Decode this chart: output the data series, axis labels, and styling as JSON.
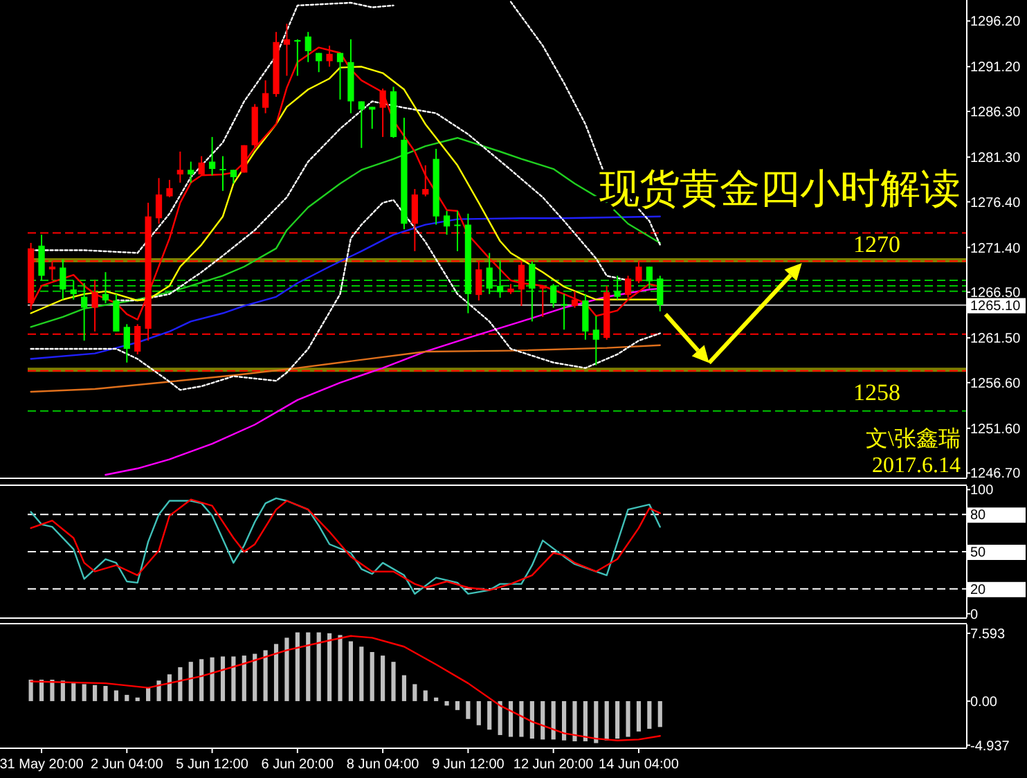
{
  "chart_data": [
    {
      "type": "candlestick",
      "title": "现货黄金四小时解读",
      "annotations": [
        "文\\张鑫瑞",
        "2017.6.14"
      ],
      "categories": [
        null,
        null,
        null,
        null,
        null,
        null,
        null,
        null,
        null,
        null,
        null,
        null,
        null,
        null,
        null,
        null,
        null,
        null,
        null,
        null,
        null,
        null,
        null,
        null,
        null,
        null,
        null,
        null,
        null,
        null,
        null,
        null,
        null,
        null,
        null,
        null,
        null,
        null,
        null,
        null,
        null,
        null,
        null,
        null,
        null,
        null,
        null,
        null,
        null,
        null,
        null,
        null,
        null,
        null,
        null,
        null,
        null,
        null,
        null,
        null,
        null,
        null,
        null,
        null,
        null,
        null,
        null,
        null,
        null,
        null,
        null,
        null,
        null,
        null,
        null,
        null,
        null,
        null,
        null,
        null,
        null,
        null,
        null,
        null,
        null,
        null,
        null,
        null
      ],
      "ylim": [
        1246.2,
        1298.5
      ],
      "yticks": [
        {
          "value": 1296.2,
          "label": "1296.20"
        },
        {
          "value": 1291.2,
          "label": "1291.20"
        },
        {
          "value": 1286.3,
          "label": "1286.30"
        },
        {
          "value": 1281.3,
          "label": "1281.30"
        },
        {
          "value": 1276.4,
          "label": "1276.40"
        },
        {
          "value": 1271.4,
          "label": "1271.40"
        },
        {
          "value": 1266.5,
          "label": "1266.50"
        },
        {
          "value": 1265.1,
          "label": "1265.10"
        },
        {
          "value": 1261.5,
          "label": "1261.50"
        },
        {
          "value": 1256.6,
          "label": "1256.60"
        },
        {
          "value": 1251.6,
          "label": "1251.60"
        },
        {
          "value": 1246.7,
          "label": "1246.70"
        }
      ],
      "tick_labels": "y",
      "ohlc": [
        [
          1265.3,
          1271.9,
          1264.6,
          1271.3
        ],
        [
          1271.6,
          1272.8,
          1267.8,
          1268.3
        ],
        [
          1269.0,
          1269.9,
          1267.8,
          1269.3
        ],
        [
          1269.2,
          1270.1,
          1265.7,
          1266.8
        ],
        [
          1266.8,
          1267.8,
          1265.7,
          1266.3
        ],
        [
          1266.0,
          1267.5,
          1261.2,
          1264.8
        ],
        [
          1264.8,
          1267.8,
          1262.2,
          1266.5
        ],
        [
          1266.3,
          1268.7,
          1265.3,
          1265.6
        ],
        [
          1265.6,
          1266.3,
          1262.2,
          1262.2
        ],
        [
          1262.7,
          1263.0,
          1258.8,
          1260.3
        ],
        [
          1260.0,
          1263.0,
          1259.7,
          1262.8
        ],
        [
          1262.5,
          1276.3,
          1261.2,
          1274.8
        ],
        [
          1274.6,
          1279.0,
          1274.0,
          1277.2
        ],
        [
          1277.0,
          1278.8,
          1276.9,
          1277.9
        ],
        [
          1279.4,
          1281.9,
          1278.5,
          1279.9
        ],
        [
          1279.9,
          1280.8,
          1278.5,
          1279.4
        ],
        [
          1279.4,
          1281.4,
          1279.3,
          1280.7
        ],
        [
          1280.8,
          1283.5,
          1279.3,
          1280.0
        ],
        [
          1280.0,
          1281.4,
          1277.6,
          1279.9
        ],
        [
          1279.9,
          1279.9,
          1278.4,
          1279.1
        ],
        [
          1279.6,
          1282.6,
          1279.6,
          1282.6
        ],
        [
          1282.6,
          1287.1,
          1282.3,
          1286.8
        ],
        [
          1286.7,
          1289.7,
          1286.1,
          1288.3
        ],
        [
          1288.2,
          1295.0,
          1287.9,
          1293.9
        ],
        [
          1293.6,
          1295.9,
          1290.2,
          1294.2
        ],
        [
          1294.1,
          1294.2,
          1290.2,
          1294.0
        ],
        [
          1294.5,
          1295.0,
          1291.7,
          1292.9
        ],
        [
          1292.7,
          1292.7,
          1290.6,
          1291.8
        ],
        [
          1291.8,
          1293.5,
          1291.2,
          1292.6
        ],
        [
          1292.7,
          1292.7,
          1287.6,
          1291.7
        ],
        [
          1291.7,
          1294.2,
          1286.1,
          1287.4
        ],
        [
          1287.4,
          1287.4,
          1282.3,
          1286.5
        ],
        [
          1286.8,
          1286.8,
          1284.4,
          1286.5
        ],
        [
          1286.7,
          1288.8,
          1283.5,
          1288.6
        ],
        [
          1288.5,
          1289.0,
          1283.4,
          1283.5
        ],
        [
          1283.2,
          1285.6,
          1273.4,
          1274.0
        ],
        [
          1274.0,
          1277.8,
          1271.0,
          1277.2
        ],
        [
          1277.2,
          1280.4,
          1277.0,
          1277.8
        ],
        [
          1281.1,
          1282.2,
          1273.9,
          1274.8
        ],
        [
          1274.9,
          1275.4,
          1272.8,
          1273.7
        ],
        [
          1273.9,
          1275.4,
          1271.0,
          1273.8
        ],
        [
          1273.9,
          1275.1,
          1264.2,
          1266.3
        ],
        [
          1266.2,
          1269.9,
          1265.6,
          1269.0
        ],
        [
          1269.2,
          1270.8,
          1266.3,
          1266.9
        ],
        [
          1267.2,
          1269.9,
          1265.9,
          1266.5
        ],
        [
          1266.5,
          1267.4,
          1266.3,
          1266.9
        ],
        [
          1266.8,
          1269.9,
          1265.0,
          1269.5
        ],
        [
          1269.6,
          1269.9,
          1263.3,
          1266.9
        ],
        [
          1266.9,
          1267.2,
          1263.8,
          1267.2
        ],
        [
          1267.2,
          1267.4,
          1264.8,
          1265.3
        ],
        [
          1265.2,
          1266.3,
          1262.4,
          1265.1
        ],
        [
          1265.0,
          1266.6,
          1264.8,
          1265.7
        ],
        [
          1265.6,
          1266.3,
          1261.3,
          1262.2
        ],
        [
          1262.4,
          1263.9,
          1258.5,
          1261.3
        ],
        [
          1261.5,
          1267.2,
          1261.3,
          1266.5
        ],
        [
          1266.6,
          1268.3,
          1265.7,
          1266.0
        ],
        [
          1266.2,
          1268.3,
          1265.9,
          1268.0
        ],
        [
          1267.7,
          1269.9,
          1267.5,
          1269.3
        ],
        [
          1269.3,
          1269.3,
          1266.9,
          1267.7
        ],
        [
          1268.0,
          1268.3,
          1264.4,
          1265.1
        ],
        null,
        null,
        null,
        null,
        null,
        null,
        null,
        null,
        null,
        null,
        null,
        null,
        null,
        null,
        null,
        null,
        null,
        null,
        null,
        null,
        null,
        null,
        null,
        null,
        null,
        null,
        null,
        null
      ],
      "colors": [
        "#ff0000",
        "#00ff00",
        "#ff0000",
        "#00ff00",
        "#00ff00",
        "#00ff00",
        "#ff0000",
        "#00ff00",
        "#00ff00",
        "#00ff00",
        "#ff0000",
        "#ff0000",
        "#ff0000",
        "#ff0000",
        "#ff0000",
        "#00ff00",
        "#ff0000",
        "#00ff00",
        "#00ff00",
        "#00ff00",
        "#ff0000",
        "#ff0000",
        "#ff0000",
        "#ff0000",
        "#ff0000",
        "#00ff00",
        "#00ff00",
        "#00ff00",
        "#ff0000",
        "#00ff00",
        "#00ff00",
        "#00ff00",
        "#00ff00",
        "#ff0000",
        "#00ff00",
        "#00ff00",
        "#ff0000",
        "#ff0000",
        "#00ff00",
        "#00ff00",
        "#00ff00",
        "#00ff00",
        "#ff0000",
        "#00ff00",
        "#00ff00",
        "#ff0000",
        "#ff0000",
        "#00ff00",
        "#ff0000",
        "#00ff00",
        "#00ff00",
        "#ff0000",
        "#00ff00",
        "#00ff00",
        "#ff0000",
        "#00ff00",
        "#ff0000",
        "#ff0000",
        "#00ff00",
        "#00ff00",
        null,
        null,
        null,
        null,
        null,
        null,
        null,
        null,
        null,
        null,
        null,
        null,
        null,
        null,
        null,
        null,
        null,
        null,
        null,
        null,
        null,
        null,
        null,
        null,
        null,
        null,
        null,
        null
      ],
      "series": [
        {
          "type": "line",
          "color": "#ff00ff",
          "values": [
            null,
            null,
            null,
            null,
            null,
            null,
            null,
            1246.5,
            null,
            null,
            1247.2,
            null,
            null,
            1248.2,
            null,
            null,
            null,
            1249.9,
            null,
            null,
            null,
            1252.0,
            null,
            null,
            null,
            1254.7,
            null,
            null,
            null,
            1256.6,
            null,
            null,
            null,
            1258.2,
            null,
            null,
            null,
            1260.0,
            null,
            null,
            null,
            1261.5,
            null,
            null,
            null,
            null,
            1263.3,
            null,
            null,
            null,
            1264.8,
            null,
            null,
            null,
            1266.0,
            null,
            null,
            null,
            1266.8,
            1266.9,
            null,
            null,
            null,
            null,
            null,
            null,
            null,
            null,
            null,
            null,
            null,
            null,
            null,
            null,
            null,
            null,
            null,
            null,
            null,
            null,
            null,
            null,
            null,
            null,
            null,
            null,
            null,
            null
          ]
        },
        {
          "type": "line",
          "color": "#e0701c",
          "values": [
            1255.6,
            null,
            null,
            null,
            null,
            null,
            1255.9,
            null,
            null,
            null,
            null,
            null,
            null,
            1256.7,
            null,
            null,
            null,
            null,
            null,
            1257.4,
            null,
            null,
            null,
            null,
            null,
            1258.2,
            null,
            null,
            null,
            1258.8,
            null,
            null,
            null,
            null,
            null,
            null,
            null,
            1260.0,
            null,
            null,
            null,
            null,
            null,
            null,
            null,
            1260.1,
            null,
            null,
            null,
            null,
            null,
            null,
            null,
            null,
            1260.4,
            null,
            null,
            null,
            null,
            1260.7,
            null,
            null,
            null,
            null,
            null,
            null,
            null,
            null,
            null,
            null,
            null,
            null,
            null,
            null,
            null,
            null,
            null,
            null,
            null,
            null,
            null,
            null,
            null,
            null,
            null,
            null,
            null,
            null
          ]
        },
        {
          "type": "line",
          "color": "#2020ff",
          "values": [
            1259.2,
            null,
            null,
            null,
            null,
            null,
            1259.8,
            null,
            1260.4,
            null,
            1261.0,
            null,
            null,
            1262.2,
            null,
            1263.3,
            null,
            null,
            1264.2,
            null,
            1265.0,
            null,
            null,
            1266.0,
            null,
            1267.5,
            null,
            null,
            1269.3,
            null,
            null,
            1271.0,
            null,
            null,
            1272.8,
            null,
            null,
            1273.9,
            null,
            null,
            1274.5,
            null,
            null,
            null,
            null,
            null,
            1274.6,
            null,
            null,
            null,
            1274.6,
            null,
            null,
            null,
            null,
            null,
            null,
            null,
            null,
            1274.8,
            null,
            null,
            null,
            null,
            null,
            null,
            null,
            null,
            null,
            null,
            null,
            null,
            null,
            null,
            null,
            null,
            null,
            null,
            null,
            null,
            null,
            null,
            null,
            null,
            null,
            null,
            null,
            null
          ]
        },
        {
          "type": "line",
          "color": "#20d020",
          "values": [
            1262.7,
            null,
            null,
            1263.8,
            null,
            1264.7,
            null,
            null,
            1265.3,
            null,
            1265.7,
            null,
            null,
            1266.5,
            null,
            1267.2,
            null,
            null,
            1268.3,
            null,
            1269.3,
            null,
            null,
            1271.3,
            1273.3,
            null,
            1275.8,
            null,
            null,
            1278.4,
            null,
            1279.9,
            null,
            null,
            1281.1,
            null,
            null,
            1282.5,
            null,
            null,
            1283.4,
            null,
            null,
            null,
            1281.9,
            null,
            1281.1,
            null,
            null,
            1280.0,
            null,
            1278.4,
            null,
            null,
            1276.3,
            null,
            1274.0,
            null,
            null,
            1271.9,
            null,
            null,
            null,
            null,
            null,
            null,
            null,
            null,
            null,
            null,
            null,
            null,
            null,
            null,
            null,
            null,
            null,
            null,
            null,
            null,
            null,
            null,
            null,
            null,
            null,
            null,
            null,
            null
          ]
        },
        {
          "type": "line",
          "color": "#ffffff",
          "line_style": "dotted",
          "values": [
            1271.1,
            null,
            null,
            null,
            null,
            1271.1,
            null,
            null,
            null,
            null,
            1270.8,
            null,
            null,
            1275.1,
            null,
            1279.1,
            null,
            null,
            1282.9,
            null,
            1287.4,
            null,
            null,
            1292.4,
            null,
            1297.9,
            null,
            null,
            null,
            null,
            1298.2,
            null,
            1297.7,
            null,
            1297.9,
            null,
            null,
            null,
            null,
            null,
            null,
            null,
            null,
            null,
            null,
            null,
            null,
            null,
            null,
            null,
            null,
            null,
            null,
            null,
            null,
            null,
            null,
            null,
            null,
            null,
            null,
            null,
            null,
            null,
            null,
            null,
            null,
            null,
            null,
            null,
            null,
            null,
            null,
            null,
            null,
            null,
            null,
            null,
            null,
            null,
            null,
            null,
            null,
            null,
            null,
            null,
            null,
            null
          ]
        },
        {
          "type": "line",
          "color": "#ffffff",
          "line_style": "dotted",
          "values": [
            null,
            null,
            null,
            null,
            null,
            null,
            null,
            null,
            null,
            null,
            null,
            null,
            null,
            null,
            null,
            null,
            null,
            null,
            null,
            null,
            null,
            null,
            null,
            null,
            null,
            null,
            null,
            null,
            null,
            null,
            null,
            null,
            null,
            null,
            null,
            null,
            null,
            null,
            null,
            null,
            null,
            null,
            null,
            null,
            null,
            1298.3,
            null,
            null,
            1293.5,
            null,
            1289.4,
            null,
            1284.9,
            null,
            1278.8,
            null,
            1276.9,
            null,
            1274.3,
            1271.7,
            null,
            null,
            null,
            null,
            null,
            null,
            null,
            null,
            null,
            null,
            null,
            null,
            null,
            null,
            null,
            null,
            null,
            null,
            null,
            null,
            null,
            null,
            null,
            null,
            null,
            null,
            null,
            null
          ]
        },
        {
          "type": "line",
          "color": "#ffffff",
          "line_style": "dotted",
          "values": [
            null,
            null,
            null,
            null,
            null,
            null,
            null,
            null,
            1265.6,
            null,
            1265.6,
            null,
            null,
            1266.3,
            null,
            null,
            1268.7,
            null,
            1270.5,
            null,
            null,
            1273.3,
            null,
            null,
            1276.9,
            null,
            1280.8,
            null,
            null,
            1284.4,
            null,
            null,
            1287.4,
            null,
            null,
            1286.7,
            null,
            null,
            1286.1,
            null,
            null,
            1283.8,
            null,
            null,
            null,
            1279.9,
            null,
            null,
            1276.9,
            null,
            1274.3,
            null,
            null,
            1270.2,
            1268.3,
            null,
            1267.8,
            null,
            null,
            null,
            null,
            null,
            null,
            null,
            null,
            null,
            null,
            null,
            null,
            null,
            null,
            null,
            null,
            null,
            null,
            null,
            null,
            null,
            null,
            null,
            null,
            null,
            null,
            null,
            null,
            null,
            null,
            null
          ]
        },
        {
          "type": "line",
          "color": "#ffffff",
          "line_style": "dotted",
          "values": [
            1260.3,
            null,
            null,
            null,
            null,
            null,
            null,
            null,
            1260.3,
            null,
            1259.2,
            null,
            null,
            1256.7,
            1255.8,
            null,
            1256.2,
            null,
            null,
            1257.3,
            null,
            null,
            null,
            1256.8,
            1257.7,
            null,
            1260.3,
            null,
            null,
            1266.3,
            1272.4,
            1273.9,
            null,
            1276.3,
            1276.6,
            null,
            null,
            1272.0,
            null,
            null,
            1266.3,
            null,
            null,
            1263.3,
            null,
            1260.3,
            null,
            null,
            null,
            1258.8,
            null,
            null,
            1258.2,
            null,
            null,
            1259.7,
            null,
            1261.2,
            null,
            1262.0,
            null,
            null,
            null,
            null,
            null,
            null,
            null,
            null,
            null,
            null,
            null,
            null,
            null,
            null,
            null,
            null,
            null,
            null,
            null,
            null,
            null,
            null,
            null,
            null,
            null,
            null,
            null,
            null
          ]
        },
        {
          "type": "line",
          "color": "#ffff00",
          "values": [
            1264.2,
            null,
            null,
            1265.7,
            null,
            1266.3,
            null,
            1266.6,
            1266.3,
            null,
            1265.6,
            1265.7,
            null,
            1267.2,
            1269.3,
            null,
            1271.7,
            null,
            1274.8,
            1278.4,
            null,
            1281.9,
            null,
            1284.9,
            1286.8,
            null,
            1288.7,
            null,
            1289.9,
            1291.1,
            null,
            1291.2,
            null,
            1290.5,
            null,
            1288.7,
            null,
            1284.9,
            null,
            null,
            1280.4,
            null,
            1276.3,
            null,
            1272.1,
            1270.8,
            null,
            null,
            1268.7,
            null,
            1267.1,
            null,
            null,
            1265.7,
            null,
            1265.7,
            null,
            null,
            null,
            1265.7,
            null,
            null,
            null,
            null,
            null,
            null,
            null,
            null,
            null,
            null,
            null,
            null,
            null,
            null,
            null,
            null,
            null,
            null,
            null,
            null,
            null,
            null,
            null,
            null,
            null,
            null,
            null,
            null
          ]
        },
        {
          "type": "line",
          "color": "#ff0000",
          "values": [
            1265.0,
            1267.2,
            null,
            null,
            1268.4,
            1267.2,
            1266.3,
            null,
            1265.3,
            1264.1,
            1263.5,
            1266.3,
            null,
            1272.4,
            1276.3,
            1278.5,
            1279.3,
            null,
            1279.4,
            1279.6,
            1280.7,
            1282.3,
            null,
            1284.9,
            1288.9,
            1291.7,
            null,
            1293.3,
            null,
            1292.7,
            1290.9,
            1289.7,
            null,
            1288.4,
            1285.3,
            null,
            1281.9,
            1279.3,
            null,
            1275.5,
            1275.4,
            1272.8,
            null,
            1270.2,
            null,
            1267.8,
            1267.5,
            null,
            1267.2,
            null,
            1266.3,
            null,
            1265.3,
            1263.9,
            null,
            1264.5,
            1265.7,
            null,
            1267.4,
            1267.1,
            null,
            null,
            null,
            null,
            null,
            null,
            null,
            null,
            null,
            null,
            null,
            null,
            null,
            null,
            null,
            null,
            null,
            null,
            null,
            null,
            null,
            null,
            null,
            null,
            null,
            null,
            null,
            null
          ]
        }
      ],
      "ref_lines": [
        {
          "axis": "y",
          "value": 1273.0,
          "color": "#ff0000",
          "line_style": "dashed"
        },
        {
          "axis": "y",
          "value": 1270,
          "color": "#808000",
          "line_style": "solid",
          "label": "1270"
        },
        {
          "axis": "y",
          "value": 1269.9,
          "color": "#ff0000",
          "line_style": "dashed"
        },
        {
          "axis": "y",
          "value": 1267.8,
          "color": "#00c800",
          "line_style": "dashed"
        },
        {
          "axis": "y",
          "value": 1267.2,
          "color": "#00c800",
          "line_style": "dashed"
        },
        {
          "axis": "y",
          "value": 1266.6,
          "color": "#00c800",
          "line_style": "dashed"
        },
        {
          "axis": "y",
          "value": 1265.1,
          "color": "#c0c0c0",
          "line_style": "solid"
        },
        {
          "axis": "y",
          "value": 1261.9,
          "color": "#ff0000",
          "line_style": "dashed"
        },
        {
          "axis": "y",
          "value": 1258,
          "color": "#808000",
          "line_style": "solid",
          "label": "1258"
        },
        {
          "axis": "y",
          "value": 1257.9,
          "color": "#ff0000",
          "line_style": "dashed"
        },
        {
          "axis": "y",
          "value": 1253.5,
          "color": "#00c800",
          "line_style": "dashed"
        }
      ]
    },
    {
      "type": "line",
      "categories": [
        null,
        null,
        null,
        null,
        null,
        null,
        null,
        null,
        null,
        null,
        null,
        null,
        null,
        null,
        null,
        null,
        null,
        null,
        null,
        null,
        null,
        null,
        null,
        null,
        null,
        null,
        null,
        null,
        null,
        null,
        null,
        null,
        null,
        null,
        null,
        null,
        null,
        null,
        null,
        null,
        null,
        null,
        null,
        null,
        null,
        null,
        null,
        null,
        null,
        null,
        null,
        null,
        null,
        null,
        null,
        null,
        null,
        null,
        null,
        null,
        null,
        null,
        null,
        null,
        null,
        null,
        null,
        null,
        null,
        null,
        null,
        null,
        null,
        null,
        null,
        null,
        null,
        null,
        null,
        null,
        null,
        null,
        null,
        null,
        null,
        null,
        null,
        null
      ],
      "ylim": [
        -3,
        103
      ],
      "yticks": [
        0,
        20,
        50,
        80,
        100
      ],
      "tick_labels": "y",
      "series": [
        {
          "color": "#40c0b8",
          "values": [
            82,
            72,
            70,
            null,
            52,
            28,
            null,
            44,
            41,
            26,
            25,
            58,
            80,
            91,
            null,
            91,
            89,
            79,
            null,
            41,
            55,
            74,
            89,
            93,
            91,
            null,
            84,
            71,
            56,
            null,
            49,
            36,
            32,
            41,
            null,
            31,
            16,
            null,
            29,
            null,
            25,
            16,
            null,
            19,
            24,
            null,
            24,
            39,
            59,
            null,
            46,
            40,
            null,
            null,
            31,
            null,
            84,
            null,
            88,
            70,
            null,
            null,
            null,
            null,
            null,
            null,
            null,
            null,
            null,
            null,
            null,
            null,
            null,
            null,
            null,
            null,
            null,
            null,
            null,
            null,
            null,
            null,
            null,
            null,
            null,
            null,
            null,
            null
          ]
        },
        {
          "color": "#ff0000",
          "values": [
            69,
            null,
            75,
            null,
            61,
            41,
            34,
            null,
            39,
            null,
            31,
            null,
            51,
            79,
            null,
            92,
            null,
            87,
            null,
            61,
            50,
            56,
            null,
            84,
            91,
            null,
            84,
            null,
            66,
            null,
            46,
            null,
            34,
            null,
            34,
            null,
            24,
            21,
            null,
            26,
            null,
            21,
            null,
            19,
            null,
            24,
            null,
            31,
            null,
            49,
            47,
            41,
            null,
            34,
            null,
            44,
            null,
            69,
            85,
            81,
            null,
            null,
            null,
            null,
            null,
            null,
            null,
            null,
            null,
            null,
            null,
            null,
            null,
            null,
            null,
            null,
            null,
            null,
            null,
            null,
            null,
            null,
            null,
            null,
            null,
            null,
            null,
            null
          ]
        }
      ],
      "ref_lines": [
        {
          "axis": "y",
          "value": 80,
          "color": "#ffffff",
          "line_style": "dashed"
        },
        {
          "axis": "y",
          "value": 50,
          "color": "#ffffff",
          "line_style": "dashed"
        },
        {
          "axis": "y",
          "value": 20,
          "color": "#ffffff",
          "line_style": "dashed"
        }
      ]
    },
    {
      "type": "bar",
      "categories": [
        null,
        "31 May 20:00",
        null,
        null,
        null,
        null,
        null,
        null,
        null,
        "2 Jun 04:00",
        null,
        null,
        null,
        null,
        null,
        null,
        null,
        "5 Jun 12:00",
        null,
        null,
        null,
        null,
        null,
        null,
        null,
        "6 Jun 20:00",
        null,
        null,
        null,
        null,
        null,
        null,
        null,
        "8 Jun 04:00",
        null,
        null,
        null,
        null,
        null,
        null,
        null,
        "9 Jun 12:00",
        null,
        null,
        null,
        null,
        null,
        null,
        null,
        "12 Jun 20:00",
        null,
        null,
        null,
        null,
        null,
        null,
        null,
        "14 Jun 04:00",
        null,
        null,
        null,
        null,
        null,
        null,
        null,
        null,
        null,
        null,
        null,
        null,
        null,
        null,
        null,
        null,
        null,
        null,
        null,
        null,
        null,
        null,
        null,
        null,
        null,
        null,
        null,
        null,
        null,
        null
      ],
      "ylim": [
        -5.2,
        8.6
      ],
      "yticks": [
        {
          "value": 7.593,
          "label": "7.593"
        },
        {
          "value": 0,
          "label": "0.00"
        },
        {
          "value": -4.937,
          "label": "-4.937"
        }
      ],
      "series": [
        {
          "type": "bar",
          "color": "#c0c0c0",
          "values": [
            2.4,
            2.4,
            2.4,
            2.3,
            2.0,
            1.9,
            1.8,
            1.7,
            1.2,
            0.7,
            0.4,
            1.5,
            2.3,
            3.0,
            3.8,
            4.4,
            4.7,
            4.9,
            5.0,
            5.0,
            5.1,
            5.3,
            5.7,
            6.4,
            7.1,
            7.7,
            7.7,
            7.7,
            7.6,
            7.4,
            6.7,
            6.1,
            5.5,
            5.1,
            4.4,
            2.9,
            1.9,
            1.2,
            0.4,
            -0.5,
            -1.0,
            -2.0,
            -2.7,
            -3.2,
            -3.8,
            -4.0,
            -4.0,
            -4.2,
            -4.3,
            -4.3,
            -4.4,
            -4.5,
            -4.5,
            -4.7,
            -4.4,
            -4.2,
            -4.0,
            -3.4,
            -3.1,
            -2.9,
            null,
            null,
            null,
            null,
            null,
            null,
            null,
            null,
            null,
            null,
            null,
            null,
            null,
            null,
            null,
            null,
            null,
            null,
            null,
            null,
            null,
            null,
            null,
            null,
            null,
            null,
            null,
            null
          ]
        },
        {
          "type": "line",
          "color": "#ff0000",
          "values": [
            2.2,
            null,
            null,
            null,
            null,
            null,
            null,
            2.0,
            null,
            null,
            null,
            1.5,
            null,
            null,
            null,
            null,
            2.8,
            null,
            null,
            null,
            4.2,
            null,
            null,
            null,
            5.7,
            null,
            null,
            null,
            6.8,
            null,
            7.3,
            null,
            7.1,
            null,
            null,
            6.1,
            null,
            null,
            4.1,
            null,
            null,
            2.0,
            null,
            null,
            -0.5,
            null,
            null,
            -2.3,
            null,
            null,
            -3.6,
            null,
            null,
            -4.2,
            null,
            -4.4,
            null,
            -4.3,
            null,
            -3.9,
            null,
            null,
            null,
            null,
            null,
            null,
            null,
            null,
            null,
            null,
            null,
            null,
            null,
            null,
            null,
            null,
            null,
            null,
            null,
            null,
            null,
            null,
            null,
            null,
            null,
            null,
            null,
            null
          ]
        }
      ]
    }
  ]
}
